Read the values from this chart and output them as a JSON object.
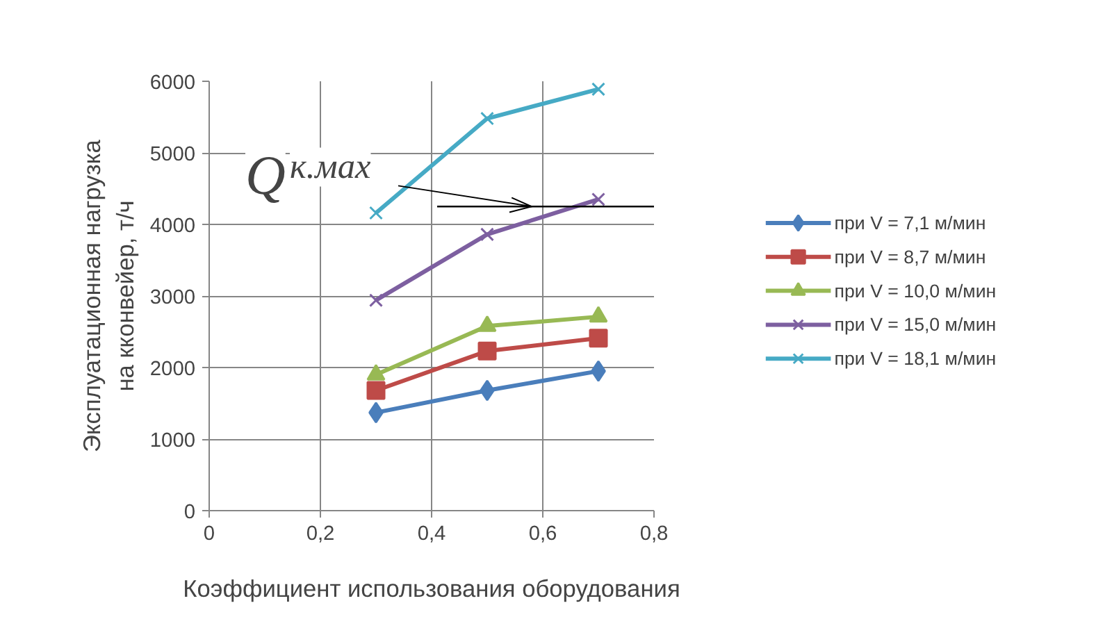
{
  "chart_data": {
    "type": "line",
    "xlabel": "Коэффициент использования оборудования",
    "ylabel": "Эксплуатационная нагрузка\nна кконвейер, т/ч",
    "xlim": [
      0,
      0.8
    ],
    "xticks": [
      {
        "value": 0,
        "label": "0"
      },
      {
        "value": 0.2,
        "label": "0,2"
      },
      {
        "value": 0.4,
        "label": "0,4"
      },
      {
        "value": 0.6,
        "label": "0,6"
      },
      {
        "value": 0.8,
        "label": "0,8"
      }
    ],
    "ylim": [
      0,
      6000
    ],
    "yticks": [
      0,
      1000,
      2000,
      3000,
      4000,
      5000,
      6000
    ],
    "grid": true,
    "legend": "right",
    "series": [
      {
        "name": "при V = 7,1 м/мин",
        "color": "#4a7ebb",
        "marker": "diamond",
        "x": [
          0.3,
          0.5,
          0.7
        ],
        "values": [
          1370,
          1680,
          1950
        ]
      },
      {
        "name": "при V = 8,7 м/мин",
        "color": "#be4b48",
        "marker": "square",
        "x": [
          0.3,
          0.5,
          0.7
        ],
        "values": [
          1680,
          2230,
          2410
        ]
      },
      {
        "name": "при V = 10,0 м/мин",
        "color": "#98b954",
        "marker": "triangle",
        "x": [
          0.3,
          0.5,
          0.7
        ],
        "values": [
          1900,
          2580,
          2710
        ]
      },
      {
        "name": "при V = 15,0 м/мин",
        "color": "#7d5fa0",
        "marker": "cross",
        "x": [
          0.3,
          0.5,
          0.7
        ],
        "values": [
          2940,
          3860,
          4350
        ]
      },
      {
        "name": "при V = 18,1 м/мин",
        "color": "#46aac5",
        "marker": "cross",
        "x": [
          0.3,
          0.5,
          0.7
        ],
        "values": [
          4160,
          5480,
          5890
        ]
      },
      {
        "color": "#000000",
        "marker": "none",
        "x": [
          0.41,
          0.8
        ],
        "values": [
          4250,
          4250
        ]
      }
    ],
    "annotations": [
      {
        "text": "Q$_{к.мах}$",
        "x": 0.58,
        "y": 4250
      }
    ]
  }
}
